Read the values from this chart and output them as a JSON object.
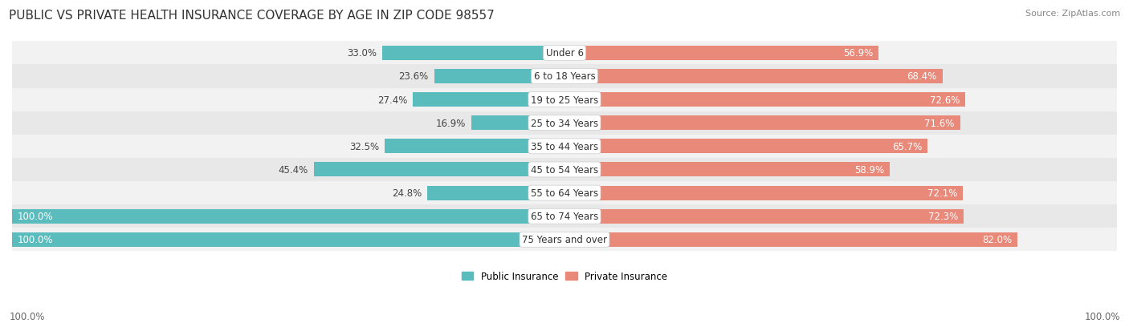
{
  "title": "PUBLIC VS PRIVATE HEALTH INSURANCE COVERAGE BY AGE IN ZIP CODE 98557",
  "source": "Source: ZipAtlas.com",
  "categories": [
    "Under 6",
    "6 to 18 Years",
    "19 to 25 Years",
    "25 to 34 Years",
    "35 to 44 Years",
    "45 to 54 Years",
    "55 to 64 Years",
    "65 to 74 Years",
    "75 Years and over"
  ],
  "public_values": [
    33.0,
    23.6,
    27.4,
    16.9,
    32.5,
    45.4,
    24.8,
    100.0,
    100.0
  ],
  "private_values": [
    56.9,
    68.4,
    72.6,
    71.6,
    65.7,
    58.9,
    72.1,
    72.3,
    82.0
  ],
  "public_color": "#5bbcbd",
  "private_color": "#e8897a",
  "row_bg_even": "#f2f2f2",
  "row_bg_odd": "#e8e8e8",
  "bar_height": 0.62,
  "title_fontsize": 11,
  "source_fontsize": 8,
  "label_fontsize": 8.5,
  "category_fontsize": 8.5,
  "value_fontsize": 8.5,
  "legend_fontsize": 8.5,
  "background_color": "#ffffff",
  "axis_label_left": "100.0%",
  "axis_label_right": "100.0%"
}
